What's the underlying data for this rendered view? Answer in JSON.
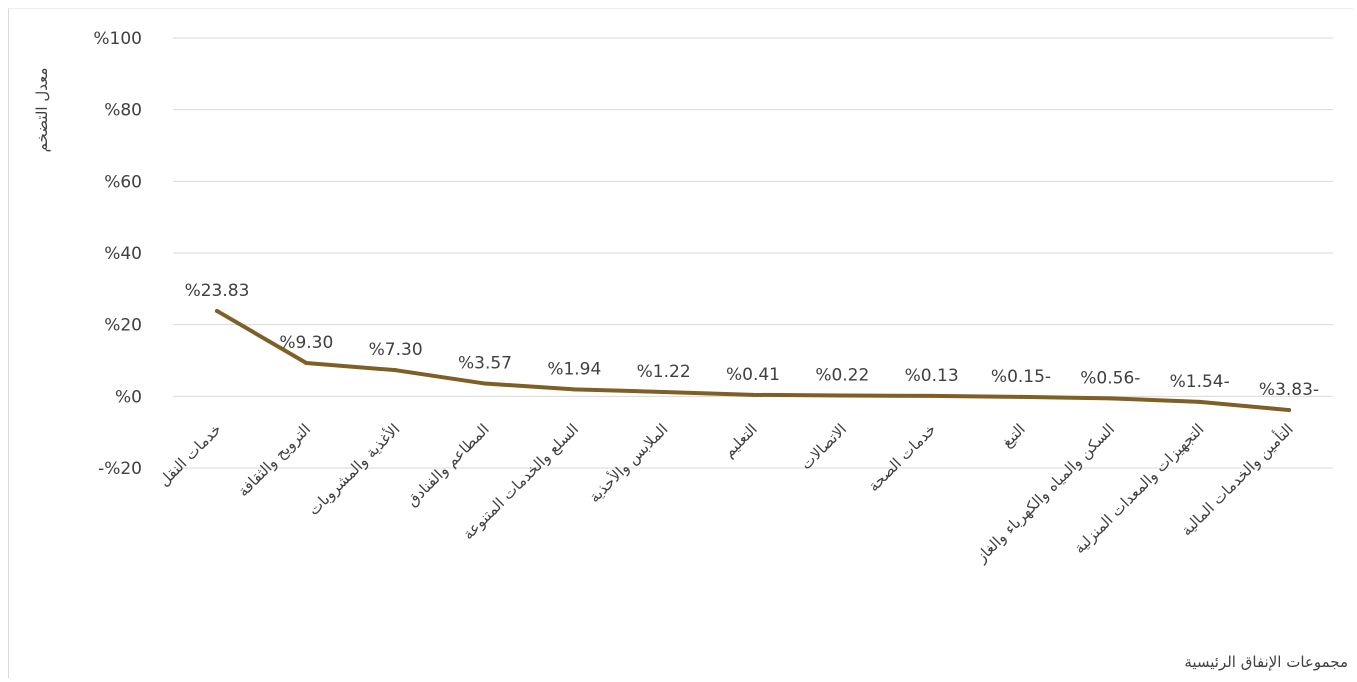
{
  "chart_data": {
    "type": "line",
    "title": "",
    "ylabel": "معدل التضخم",
    "xlabel": "مجموعات الإنفاق الرئيسية",
    "ylim": [
      -20,
      100
    ],
    "yticks": [
      100,
      80,
      60,
      40,
      20,
      0,
      -20
    ],
    "ytick_labels": [
      "%100",
      "%80",
      "%60",
      "%40",
      "%20",
      "%0",
      "-%20"
    ],
    "grid": true,
    "legend": "none",
    "line_color": "#7f5f26",
    "categories": [
      "خدمات النقل",
      "الترويح والثقافة",
      "الأغذية والمشروبات",
      "المطاعم والفنادق",
      "السلع والخدمات المتنوعة",
      "الملابس والأحذية",
      "التعليم",
      "الاتصالات",
      "خدمات الصحة",
      "التبغ",
      "السكن والمياه والكهرباء والغاز",
      "التجهيزات والمعدات المنزلية",
      "التأمين والخدمات المالية"
    ],
    "values": [
      23.83,
      9.3,
      7.3,
      3.57,
      1.94,
      1.22,
      0.41,
      0.22,
      0.13,
      -0.15,
      -0.56,
      -1.54,
      -3.83
    ],
    "data_labels": [
      "%23.83",
      "%9.30",
      "%7.30",
      "%3.57",
      "%1.94",
      "%1.22",
      "%0.41",
      "%0.22",
      "%0.13",
      "%0.15-",
      "%0.56-",
      "%1.54-",
      "%3.83-"
    ]
  }
}
